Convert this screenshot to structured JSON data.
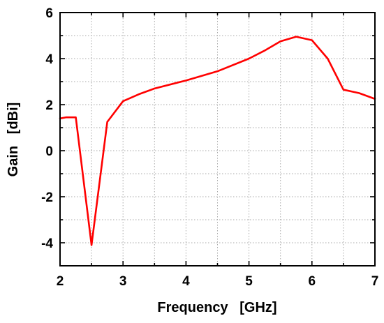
{
  "chart_data": {
    "type": "line",
    "title": "",
    "xlabel": "Frequency   [GHz]",
    "ylabel": "Gain   [dBi]",
    "xlim": [
      2,
      7
    ],
    "ylim": [
      -5,
      6
    ],
    "xticks": [
      2,
      3,
      4,
      5,
      6,
      7
    ],
    "yticks": [
      -4,
      -2,
      0,
      2,
      4,
      6
    ],
    "xtick_labels": [
      "2",
      "3",
      "4",
      "5",
      "6",
      "7"
    ],
    "ytick_labels": [
      "-4",
      "-2",
      "0",
      "2",
      "4",
      "6"
    ],
    "grid": true,
    "grid_style": "dotted",
    "minor_ticks": true,
    "legend": "none",
    "series": [
      {
        "color": "#ff0000",
        "x": [
          2.0,
          2.1,
          2.25,
          2.5,
          2.75,
          3.0,
          3.25,
          3.5,
          4.0,
          4.5,
          5.0,
          5.25,
          5.5,
          5.75,
          6.0,
          6.25,
          6.5,
          6.75,
          7.0
        ],
        "y": [
          1.4,
          1.45,
          1.45,
          -4.1,
          1.25,
          2.15,
          2.45,
          2.7,
          3.05,
          3.45,
          4.0,
          4.35,
          4.75,
          4.95,
          4.8,
          4.0,
          2.65,
          2.5,
          2.25
        ]
      }
    ]
  }
}
